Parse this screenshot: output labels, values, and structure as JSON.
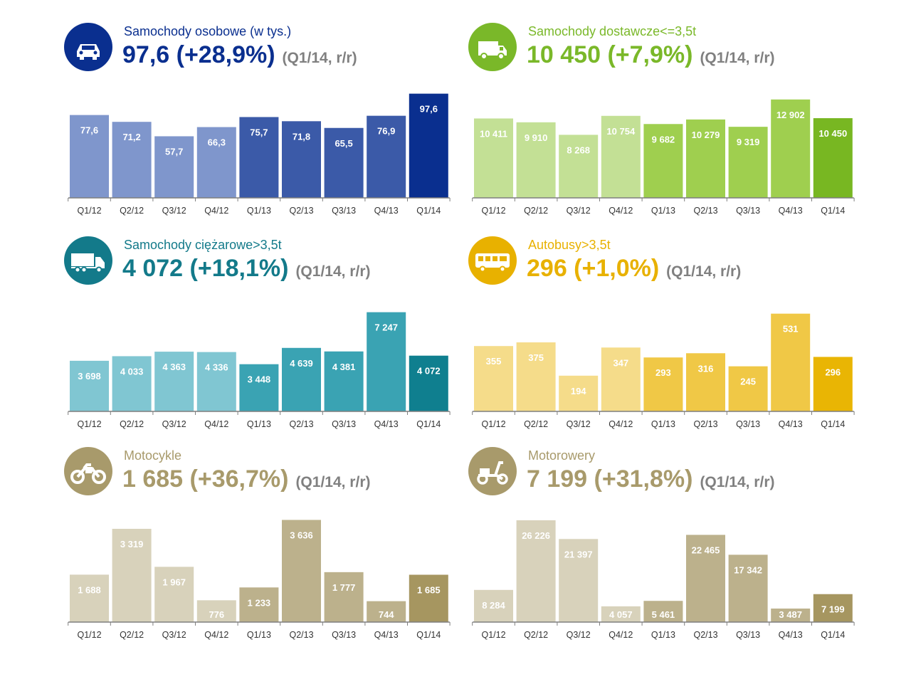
{
  "categories": [
    "Q1/12",
    "Q2/12",
    "Q3/12",
    "Q4/12",
    "Q1/13",
    "Q2/13",
    "Q3/13",
    "Q4/13",
    "Q1/14"
  ],
  "period_label": "(Q1/14, r/r)",
  "panels": [
    {
      "title": "Samochody osobowe (w tys.)",
      "headline": "97,6 (+28,9%)",
      "icon": "car-icon",
      "color": "#0a2f8f",
      "bar_colors": [
        "#7f96cc",
        "#7f96cc",
        "#7f96cc",
        "#7f96cc",
        "#3b5aa8",
        "#3b5aa8",
        "#3b5aa8",
        "#3b5aa8",
        "#0a2f8f"
      ],
      "chart_data": {
        "type": "bar",
        "categories": [
          "Q1/12",
          "Q2/12",
          "Q3/12",
          "Q4/12",
          "Q1/13",
          "Q2/13",
          "Q3/13",
          "Q4/13",
          "Q1/14"
        ],
        "values": [
          77.6,
          71.2,
          57.7,
          66.3,
          75.7,
          71.8,
          65.5,
          76.9,
          97.6
        ],
        "value_labels": [
          "77,6",
          "71,2",
          "57,7",
          "66,3",
          "75,7",
          "71,8",
          "65,5",
          "76,9",
          "97,6"
        ],
        "ylim": [
          0,
          100
        ]
      }
    },
    {
      "title": "Samochody dostawcze<=3,5t",
      "headline": "10 450 (+7,9%)",
      "icon": "van-icon",
      "color": "#7ab829",
      "bar_colors": [
        "#c3e095",
        "#c3e095",
        "#c3e095",
        "#c3e095",
        "#9fcf4f",
        "#9fcf4f",
        "#9fcf4f",
        "#9fcf4f",
        "#78b722"
      ],
      "chart_data": {
        "type": "bar",
        "categories": [
          "Q1/12",
          "Q2/12",
          "Q3/12",
          "Q4/12",
          "Q1/13",
          "Q2/13",
          "Q3/13",
          "Q4/13",
          "Q1/14"
        ],
        "values": [
          10411,
          9910,
          8268,
          10754,
          9682,
          10279,
          9319,
          12902,
          10450
        ],
        "value_labels": [
          "10 411",
          "9 910",
          "8 268",
          "10 754",
          "9 682",
          "10 279",
          "9 319",
          "12 902",
          "10 450"
        ],
        "ylim": [
          0,
          14000
        ]
      }
    },
    {
      "title": "Samochody ciężarowe>3,5t",
      "headline": "4 072 (+18,1%)",
      "icon": "truck-icon",
      "color": "#137a8a",
      "bar_colors": [
        "#80c6d2",
        "#80c6d2",
        "#80c6d2",
        "#80c6d2",
        "#3aa3b3",
        "#3aa3b3",
        "#3aa3b3",
        "#3aa3b3",
        "#0f7f8f"
      ],
      "chart_data": {
        "type": "bar",
        "categories": [
          "Q1/12",
          "Q2/12",
          "Q3/12",
          "Q4/12",
          "Q1/13",
          "Q2/13",
          "Q3/13",
          "Q4/13",
          "Q1/14"
        ],
        "values": [
          3698,
          4033,
          4363,
          4336,
          3448,
          4639,
          4381,
          7247,
          4072
        ],
        "value_labels": [
          "3 698",
          "4 033",
          "4 363",
          "4 336",
          "3 448",
          "4 639",
          "4 381",
          "7 247",
          "4 072"
        ],
        "ylim": [
          0,
          7800
        ]
      }
    },
    {
      "title": "Autobusy>3,5t",
      "headline": "296 (+1,0%)",
      "icon": "bus-icon",
      "color": "#e8b100",
      "bar_colors": [
        "#f5dc8a",
        "#f5dc8a",
        "#f5dc8a",
        "#f5dc8a",
        "#f0c846",
        "#f0c846",
        "#f0c846",
        "#f0c846",
        "#e9b504"
      ],
      "chart_data": {
        "type": "bar",
        "categories": [
          "Q1/12",
          "Q2/12",
          "Q3/12",
          "Q4/12",
          "Q1/13",
          "Q2/13",
          "Q3/13",
          "Q4/13",
          "Q1/14"
        ],
        "values": [
          355,
          375,
          194,
          347,
          293,
          316,
          245,
          531,
          296
        ],
        "value_labels": [
          "355",
          "375",
          "194",
          "347",
          "293",
          "316",
          "245",
          "531",
          "296"
        ],
        "ylim": [
          0,
          580
        ]
      }
    },
    {
      "title": "Motocykle",
      "headline": "1 685 (+36,7%)",
      "icon": "motorcycle-icon",
      "color": "#a89a6b",
      "bar_colors": [
        "#d8d2bb",
        "#d8d2bb",
        "#d8d2bb",
        "#d8d2bb",
        "#bcb18c",
        "#bcb18c",
        "#bcb18c",
        "#bcb18c",
        "#a69660"
      ],
      "chart_data": {
        "type": "bar",
        "categories": [
          "Q1/12",
          "Q2/12",
          "Q3/12",
          "Q4/12",
          "Q1/13",
          "Q2/13",
          "Q3/13",
          "Q4/13",
          "Q1/14"
        ],
        "values": [
          1688,
          3319,
          1967,
          776,
          1233,
          3636,
          1777,
          744,
          1685
        ],
        "value_labels": [
          "1 688",
          "3 319",
          "1 967",
          "776",
          "1 233",
          "3 636",
          "1 777",
          "744",
          "1 685"
        ],
        "ylim": [
          0,
          3800
        ]
      }
    },
    {
      "title": "Motorowery",
      "headline": "7 199 (+31,8%)",
      "icon": "scooter-icon",
      "color": "#a89a6b",
      "bar_colors": [
        "#d8d2bb",
        "#d8d2bb",
        "#d8d2bb",
        "#d8d2bb",
        "#bcb18c",
        "#bcb18c",
        "#bcb18c",
        "#bcb18c",
        "#a69660"
      ],
      "chart_data": {
        "type": "bar",
        "categories": [
          "Q1/12",
          "Q2/12",
          "Q3/12",
          "Q4/12",
          "Q1/13",
          "Q2/13",
          "Q3/13",
          "Q4/13",
          "Q1/14"
        ],
        "values": [
          8284,
          26226,
          21397,
          4057,
          5461,
          22465,
          17342,
          3487,
          7199
        ],
        "value_labels": [
          "8 284",
          "26 226",
          "21 397",
          "4 057",
          "5 461",
          "22 465",
          "17 342",
          "3 487",
          "7 199"
        ],
        "ylim": [
          0,
          27500
        ]
      }
    }
  ]
}
